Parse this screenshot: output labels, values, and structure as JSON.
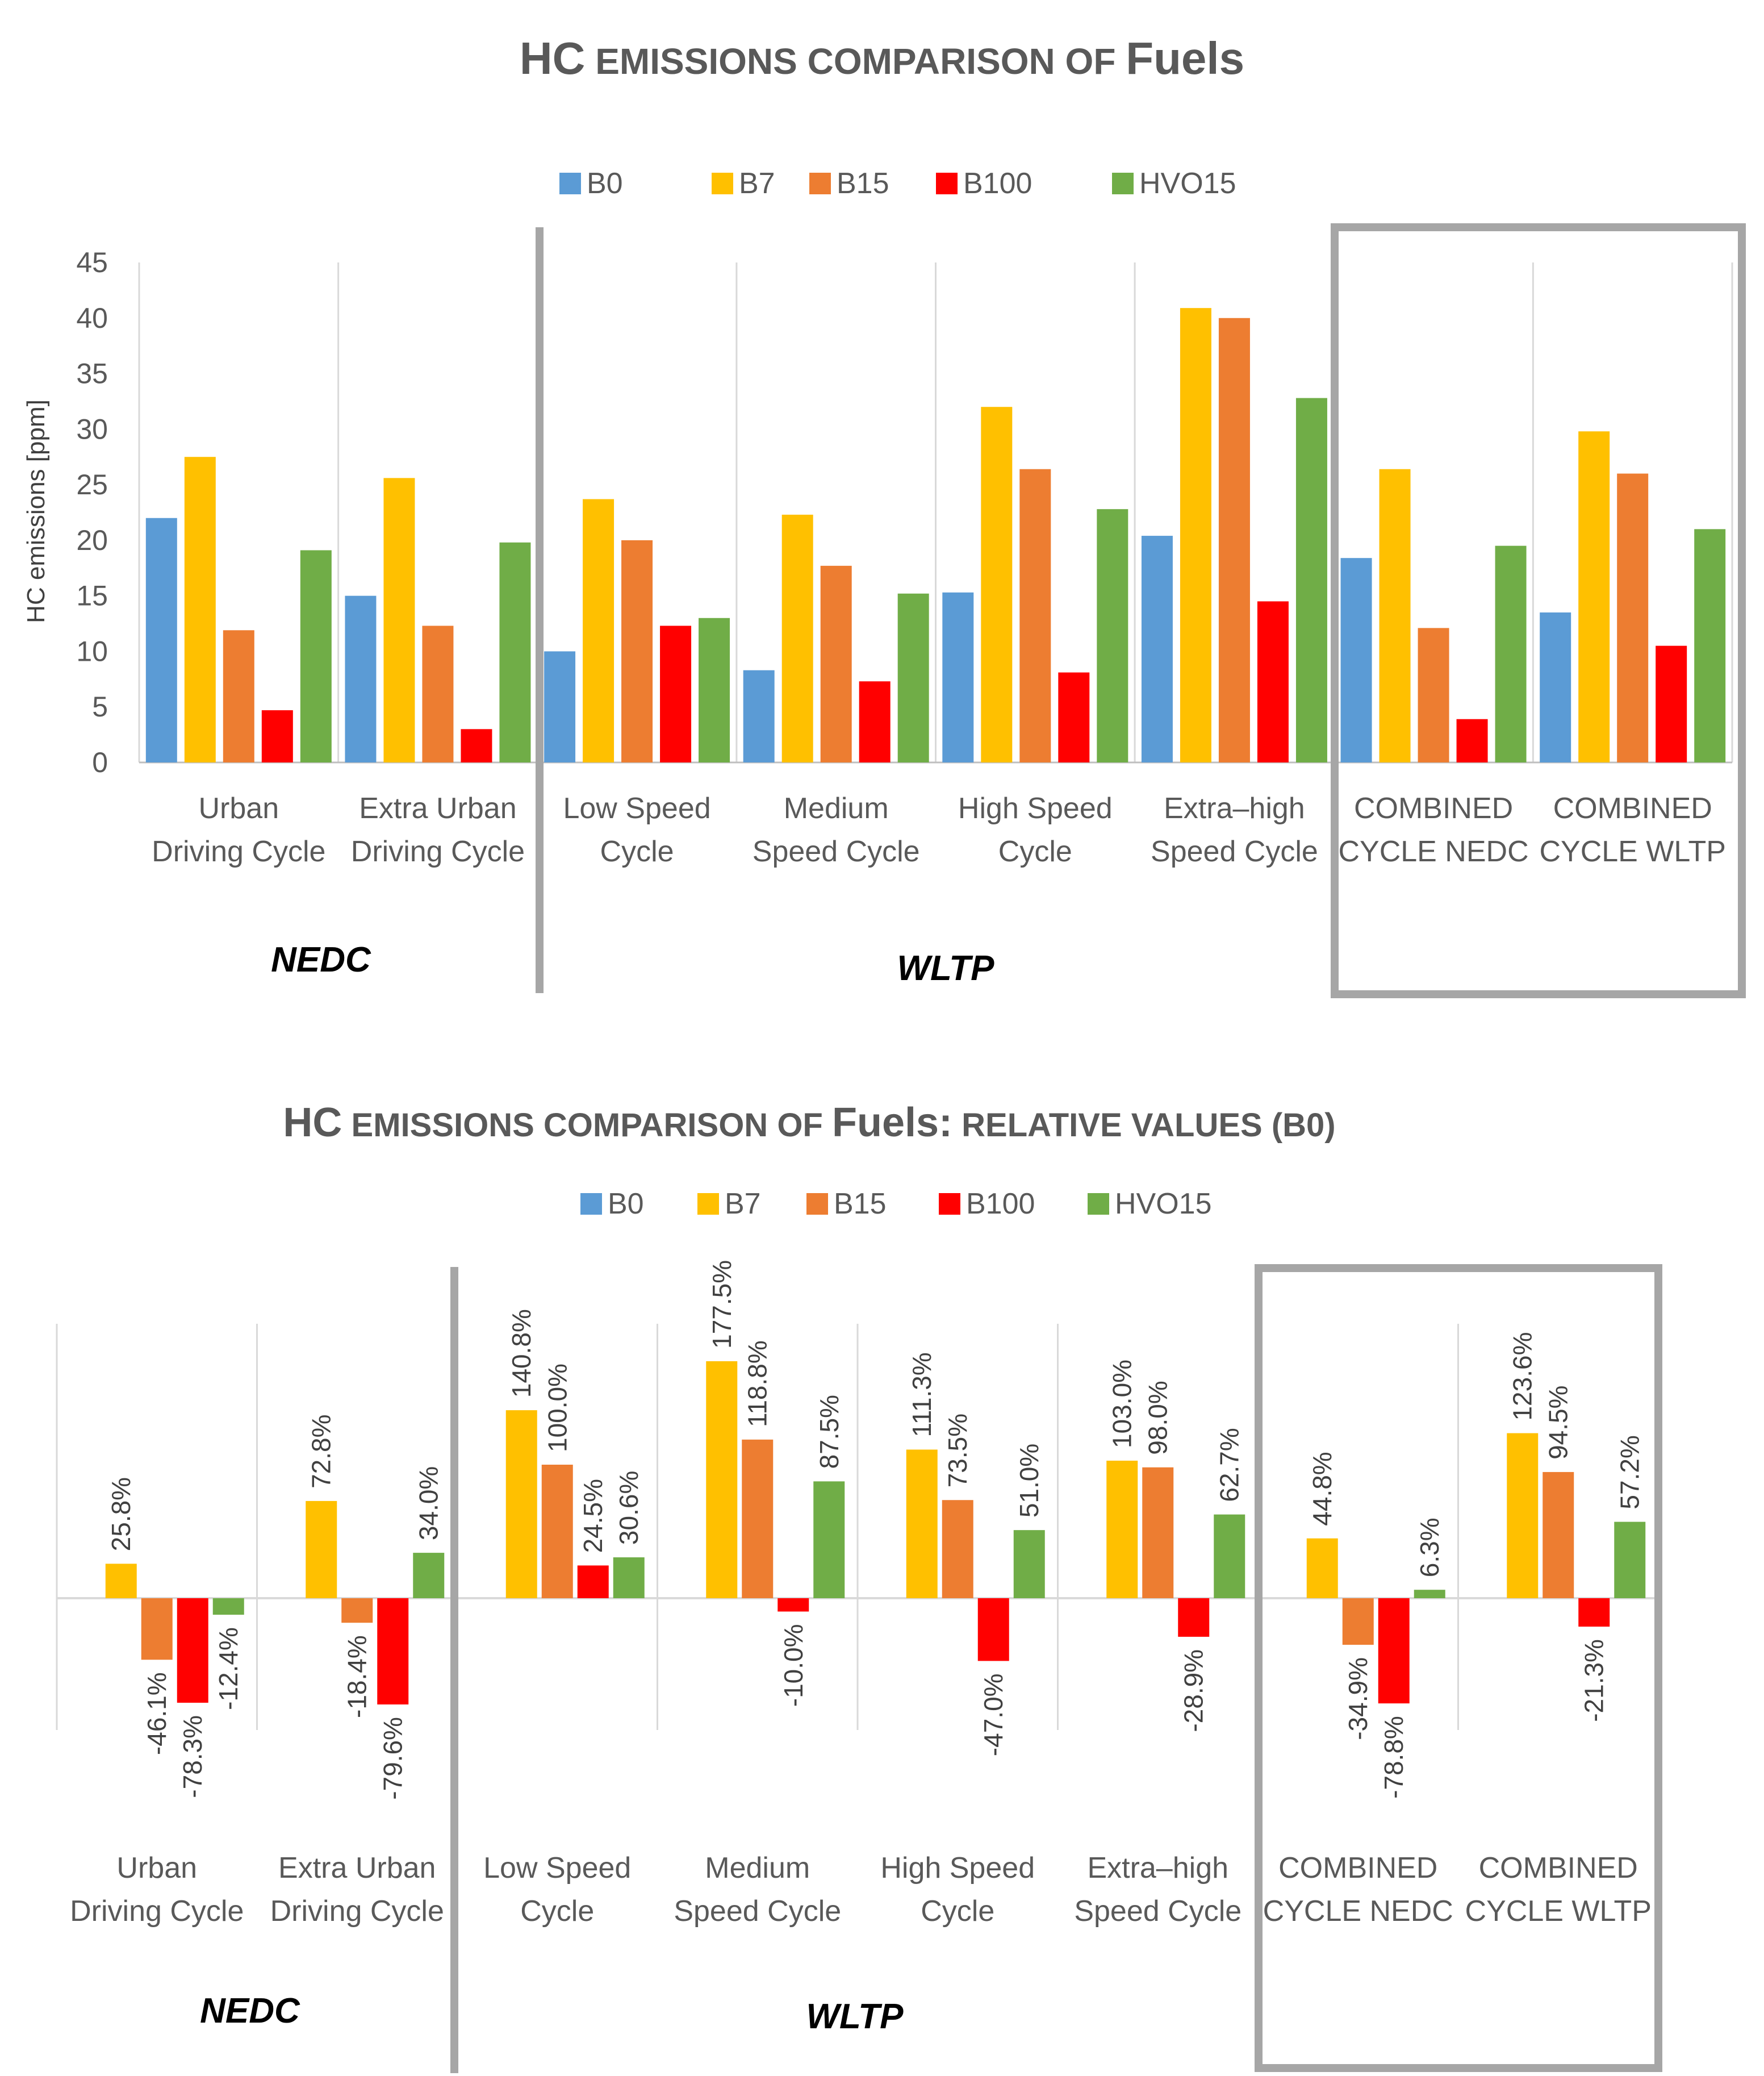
{
  "series_colors": {
    "B0": "#5B9BD5",
    "B7": "#FFC000",
    "B15": "#ED7D31",
    "B100": "#FF0000",
    "HVO15": "#70AD47"
  },
  "chart_data": [
    {
      "type": "bar",
      "title": "HC emissions comparison of Fuels",
      "ylabel": "HC emissions [ppm]",
      "xlabel": "",
      "ylim": [
        0,
        45
      ],
      "yticks": [
        "0",
        "5",
        "10",
        "15",
        "20",
        "25",
        "30",
        "35",
        "40",
        "45"
      ],
      "legend_position": "top-center",
      "categories": [
        "Urban Driving Cycle",
        "Extra Urban Driving Cycle",
        "Low Speed Cycle",
        "Medium Speed Cycle",
        "High Speed Cycle",
        "Extra–high Speed Cycle",
        "COMBINED CYCLE NEDC",
        "COMBINED CYCLE WLTP"
      ],
      "category_labels": [
        [
          "Urban",
          "Driving Cycle"
        ],
        [
          "Extra Urban",
          "Driving Cycle"
        ],
        [
          "Low Speed",
          "Cycle"
        ],
        [
          "Medium",
          "Speed Cycle"
        ],
        [
          "High Speed",
          "Cycle"
        ],
        [
          "Extra–high",
          "Speed Cycle"
        ],
        [
          "COMBINED",
          "CYCLE NEDC"
        ],
        [
          "COMBINED",
          "CYCLE WLTP"
        ]
      ],
      "series": [
        {
          "name": "B0",
          "values": [
            22.0,
            15.0,
            10.0,
            8.3,
            15.3,
            20.4,
            18.4,
            13.5
          ]
        },
        {
          "name": "B7",
          "values": [
            27.5,
            25.6,
            23.7,
            22.3,
            32.0,
            40.9,
            26.4,
            29.8
          ]
        },
        {
          "name": "B15",
          "values": [
            11.9,
            12.3,
            20.0,
            17.7,
            26.4,
            40.0,
            12.1,
            26.0
          ]
        },
        {
          "name": "B100",
          "values": [
            4.7,
            3.0,
            12.3,
            7.3,
            8.1,
            14.5,
            3.9,
            10.5
          ]
        },
        {
          "name": "HVO15",
          "values": [
            19.1,
            19.8,
            13.0,
            15.2,
            22.8,
            32.8,
            19.5,
            21.0
          ]
        }
      ],
      "group_labels": {
        "nedc": "NEDC",
        "wltp": "WLTP"
      }
    },
    {
      "type": "bar",
      "title": "HC emissions comparison of Fuels: relative values (B0)",
      "ylabel": "",
      "xlabel": "",
      "ylim": [
        -100,
        200
      ],
      "legend_position": "top-center",
      "categories": [
        "Urban Driving Cycle",
        "Extra Urban Driving Cycle",
        "Low Speed Cycle",
        "Medium Speed Cycle",
        "High Speed Cycle",
        "Extra–high Speed Cycle",
        "COMBINED CYCLE NEDC",
        "COMBINED CYCLE WLTP"
      ],
      "category_labels": [
        [
          "Urban",
          "Driving Cycle"
        ],
        [
          "Extra Urban",
          "Driving Cycle"
        ],
        [
          "Low Speed",
          "Cycle"
        ],
        [
          "Medium",
          "Speed Cycle"
        ],
        [
          "High Speed",
          "Cycle"
        ],
        [
          "Extra–high",
          "Speed Cycle"
        ],
        [
          "COMBINED",
          "CYCLE NEDC"
        ],
        [
          "COMBINED",
          "CYCLE WLTP"
        ]
      ],
      "series": [
        {
          "name": "B0",
          "values": [
            0,
            0,
            0,
            0,
            0,
            0,
            0,
            0
          ]
        },
        {
          "name": "B7",
          "values": [
            25.8,
            72.8,
            140.8,
            177.5,
            111.3,
            103.0,
            44.8,
            123.6
          ]
        },
        {
          "name": "B15",
          "values": [
            -46.1,
            -18.4,
            100.0,
            118.8,
            73.5,
            98.0,
            -34.9,
            94.5
          ]
        },
        {
          "name": "B100",
          "values": [
            -78.3,
            -79.6,
            24.5,
            -10.0,
            -47.0,
            -28.9,
            -78.8,
            -21.3
          ]
        },
        {
          "name": "HVO15",
          "values": [
            -12.4,
            34.0,
            30.6,
            87.5,
            51.0,
            62.7,
            6.3,
            57.2
          ]
        }
      ],
      "data_labels": {
        "B7": [
          "25.8%",
          "72.8%",
          "140.8%",
          "177.5%",
          "111.3%",
          "103.0%",
          "44.8%",
          "123.6%"
        ],
        "B15": [
          "-46.1%",
          "-18.4%",
          "100.0%",
          "118.8%",
          "73.5%",
          "98.0%",
          "-34.9%",
          "94.5%"
        ],
        "B100": [
          "-78.3%",
          "-79.6%",
          "24.5%",
          "-10.0%",
          "-47.0%",
          "-28.9%",
          "-78.8%",
          "-21.3%"
        ],
        "HVO15": [
          "-12.4%",
          "34.0%",
          "30.6%",
          "87.5%",
          "51.0%",
          "62.7%",
          "6.3%",
          "57.2%"
        ]
      },
      "group_labels": {
        "nedc": "NEDC",
        "wltp": "WLTP"
      }
    }
  ]
}
